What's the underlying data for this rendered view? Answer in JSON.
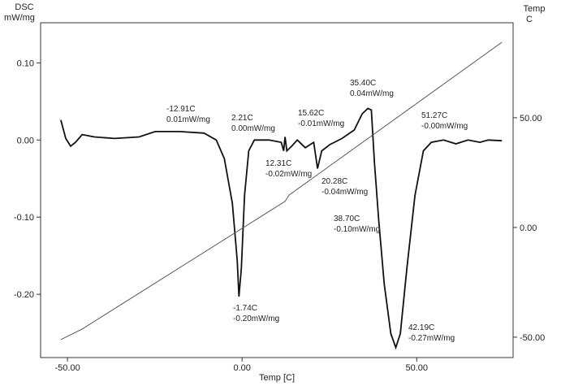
{
  "chart_data": {
    "type": "line",
    "y_axis_label": [
      "DSC",
      "mW/mg"
    ],
    "y2_axis_label": [
      "Temp",
      "C"
    ],
    "x_axis_label": "Temp  [C]",
    "xlim": [
      -57.7,
      77.6
    ],
    "ylim": [
      -0.282,
      0.152
    ],
    "y2lim": [
      -59.3,
      93.3
    ],
    "xticks": [
      {
        "value": -50,
        "label": "-50.00"
      },
      {
        "value": 0,
        "label": "0.00"
      },
      {
        "value": 50,
        "label": "50.00"
      }
    ],
    "yticks": [
      {
        "value": 0.1,
        "label": "0.10"
      },
      {
        "value": 0,
        "label": "0.00"
      },
      {
        "value": -0.1,
        "label": "-0.10"
      },
      {
        "value": -0.2,
        "label": "-0.20"
      }
    ],
    "y2ticks": [
      {
        "value": 50,
        "label": "50.00"
      },
      {
        "value": 0,
        "label": "0.00"
      },
      {
        "value": -50,
        "label": "-50.00"
      }
    ],
    "series": [
      {
        "color": "#111111",
        "x": [
          -51.9,
          -50.5,
          -49.1,
          -47.7,
          -45.8,
          -42.3,
          -36.5,
          -29.5,
          -24.9,
          -17.9,
          -10.9,
          -7.4,
          -5.1,
          -2.8,
          -1.4,
          -0.9,
          -0.2,
          0.7,
          1.9,
          3.5,
          7.7,
          11.2,
          11.9,
          12.3,
          12.8,
          14.2,
          15.8,
          18.1,
          20.5,
          21.6,
          22.8,
          25.1,
          28.6,
          32.1,
          34.4,
          36.0,
          37.0,
          37.9,
          39.1,
          40.7,
          42.6,
          44.0,
          45.3,
          47.2,
          49.5,
          51.9,
          54.2,
          57.7,
          61.2,
          64.7,
          68.1,
          70.5,
          74.4
        ],
        "values": [
          0.026,
          0.002,
          -0.008,
          -0.003,
          0.007,
          0.004,
          0.002,
          0.004,
          0.011,
          0.011,
          0.009,
          0,
          -0.024,
          -0.082,
          -0.156,
          -0.203,
          -0.166,
          -0.072,
          -0.014,
          0,
          0,
          -0.003,
          -0.014,
          0.004,
          -0.014,
          -0.008,
          0,
          -0.01,
          -0.003,
          -0.037,
          -0.014,
          -0.006,
          0.002,
          0.013,
          0.034,
          0.041,
          0.039,
          -0.029,
          -0.103,
          -0.187,
          -0.251,
          -0.269,
          -0.251,
          -0.166,
          -0.072,
          -0.014,
          -0.003,
          0,
          -0.005,
          0,
          -0.003,
          0,
          -0.001
        ]
      },
      {
        "color": "#555555",
        "axis": "y2",
        "x": [
          -51.9,
          -45.8,
          12.3,
          13.5,
          74.4
        ],
        "values": [
          -51.1,
          -46.3,
          11.9,
          14.8,
          84.4
        ]
      }
    ],
    "annotations": [
      [
        "-12.91C",
        "0.01mW/mg"
      ],
      [
        "2.21C",
        "0.00mW/mg"
      ],
      [
        "15.62C",
        "-0.01mW/mg"
      ],
      [
        "12.31C",
        "-0.02mW/mg"
      ],
      [
        "35.40C",
        "0.04mW/mg"
      ],
      [
        "51.27C",
        "-0.00mW/mg"
      ],
      [
        "20.28C",
        "-0.04mW/mg"
      ],
      [
        "38.70C",
        "-0.10mW/mg"
      ],
      [
        "-1.74C",
        "-0.20mW/mg"
      ],
      [
        "42.19C",
        "-0.27mW/mg"
      ]
    ]
  }
}
